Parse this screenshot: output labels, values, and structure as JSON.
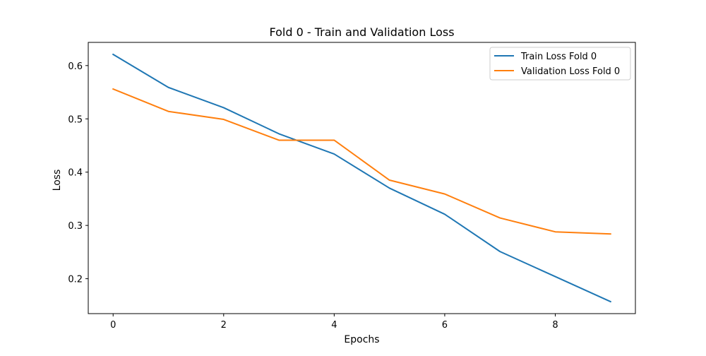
{
  "chart_data": {
    "type": "line",
    "title": "Fold 0 - Train and Validation Loss",
    "xlabel": "Epochs",
    "ylabel": "Loss",
    "xlim": [
      -0.45,
      9.45
    ],
    "ylim": [
      0.1345,
      0.6435
    ],
    "xticks": [
      0,
      2,
      4,
      6,
      8
    ],
    "yticks": [
      0.2,
      0.3,
      0.4,
      0.5,
      0.6
    ],
    "xtick_labels": [
      "0",
      "2",
      "4",
      "6",
      "8"
    ],
    "ytick_labels": [
      "0.2",
      "0.3",
      "0.4",
      "0.5",
      "0.6"
    ],
    "grid": false,
    "legend_position": "top-right",
    "x": [
      0,
      1,
      2,
      3,
      4,
      5,
      6,
      7,
      8,
      9
    ],
    "series": [
      {
        "name": "Train Loss Fold 0",
        "color": "#1f77b4",
        "values": [
          0.621,
          0.559,
          0.521,
          0.472,
          0.434,
          0.37,
          0.321,
          0.251,
          0.204,
          0.157
        ]
      },
      {
        "name": "Validation Loss Fold 0",
        "color": "#ff7f0e",
        "values": [
          0.556,
          0.514,
          0.499,
          0.46,
          0.46,
          0.385,
          0.359,
          0.314,
          0.288,
          0.284
        ]
      }
    ]
  }
}
